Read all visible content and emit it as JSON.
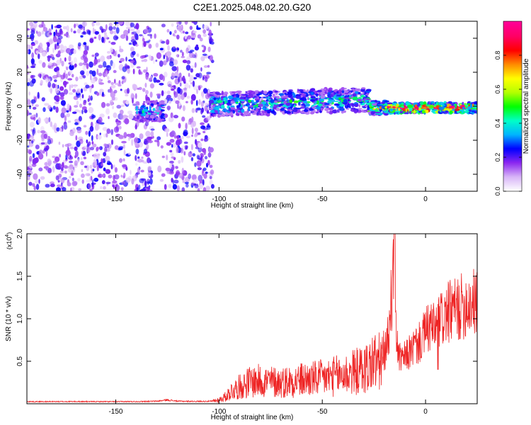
{
  "figure": {
    "title": "C2E1.2025.048.02.20.G20"
  },
  "chart_data": [
    {
      "type": "heatmap",
      "title": "C2E1.2025.048.02.20.G20",
      "xlabel": "Height of straight line (km)",
      "ylabel": "Frequency (Hz)",
      "xlim": [
        -193,
        25
      ],
      "ylim": [
        -50,
        50
      ],
      "xticks": [
        -150,
        -100,
        -50,
        0
      ],
      "xtick_labels": [
        "-150",
        "-100",
        "-50",
        "0"
      ],
      "yticks": [
        -40,
        -20,
        0,
        20,
        40
      ],
      "ytick_labels": [
        "-40",
        "-20",
        "0",
        "20",
        "40"
      ],
      "grid": false,
      "colorbar": {
        "label": "Normalized spectral amplitude",
        "range": [
          0,
          1
        ],
        "ticks": [
          0.0,
          0.2,
          0.4,
          0.6,
          0.8
        ],
        "tick_labels": [
          "0.0",
          "0.2",
          "0.4",
          "0.6",
          "0.8"
        ],
        "colors": [
          "#ffffff",
          "#d7b4f7",
          "#8c28f0",
          "#0000ff",
          "#00b4ff",
          "#00ffc8",
          "#00ff00",
          "#b4ff00",
          "#ffff00",
          "#ff8c00",
          "#ff0000",
          "#ff0064",
          "#ff0096"
        ]
      },
      "bands": [
        {
          "x_range": [
            -193,
            -103
          ],
          "f_center": 0,
          "f_halfwidth": 50,
          "amplitude": 0.12,
          "description_level": "scattered noise"
        },
        {
          "x_range": [
            -140,
            -127
          ],
          "f_center": -3,
          "f_halfwidth": 6,
          "amplitude": 0.32
        },
        {
          "x_range": [
            -104,
            -27
          ],
          "f_center": 1,
          "f_halfwidth": 7,
          "amplitude": 0.38
        },
        {
          "x_range": [
            -27,
            -18
          ],
          "f_center": -1,
          "f_halfwidth": 4,
          "amplitude": 0.55
        },
        {
          "x_range": [
            -18,
            25
          ],
          "f_center": -1,
          "f_halfwidth": 3,
          "amplitude": 0.85
        }
      ]
    },
    {
      "type": "line",
      "xlabel": "Height of straight line (km)",
      "ylabel": "SNR (10 * v/v)",
      "y_multiplier": "(x10",
      "y_multiplier_exp": "4",
      "y_multiplier_close": ")",
      "xlim": [
        -193,
        25
      ],
      "ylim": [
        0,
        20000
      ],
      "xticks": [
        -150,
        -100,
        -50,
        0
      ],
      "xtick_labels": [
        "-150",
        "-100",
        "-50",
        "0"
      ],
      "yticks": [
        5000,
        10000,
        15000,
        20000
      ],
      "ytick_labels": [
        "0.5",
        "1.0",
        "1.5",
        "2.0"
      ],
      "grid": false,
      "series": [
        {
          "color": "#ee2222",
          "x": [
            -193,
            -180,
            -170,
            -160,
            -150,
            -140,
            -130,
            -125,
            -120,
            -110,
            -103,
            -100,
            -97,
            -94,
            -90,
            -85,
            -80,
            -75,
            -70,
            -65,
            -60,
            -55,
            -50,
            -45,
            -40,
            -35,
            -30,
            -27,
            -25,
            -22,
            -20,
            -18,
            -16,
            -15,
            -14,
            -12,
            -10,
            -8,
            -6,
            -5,
            -4,
            -2,
            0,
            2,
            4,
            6,
            8,
            10,
            12,
            14,
            16,
            18,
            20,
            22,
            25
          ],
          "y": [
            250,
            250,
            260,
            250,
            250,
            260,
            300,
            450,
            300,
            280,
            300,
            450,
            800,
            1500,
            2000,
            2600,
            2700,
            2600,
            2500,
            2700,
            2800,
            2900,
            3000,
            3200,
            3400,
            3700,
            4000,
            4500,
            5000,
            4800,
            5500,
            8000,
            14000,
            20000,
            7000,
            5000,
            5500,
            6000,
            6500,
            7000,
            6800,
            7500,
            8500,
            9000,
            8800,
            9500,
            10000,
            10500,
            10800,
            11000,
            11200,
            11500,
            11800,
            12000,
            11800
          ]
        }
      ]
    }
  ]
}
